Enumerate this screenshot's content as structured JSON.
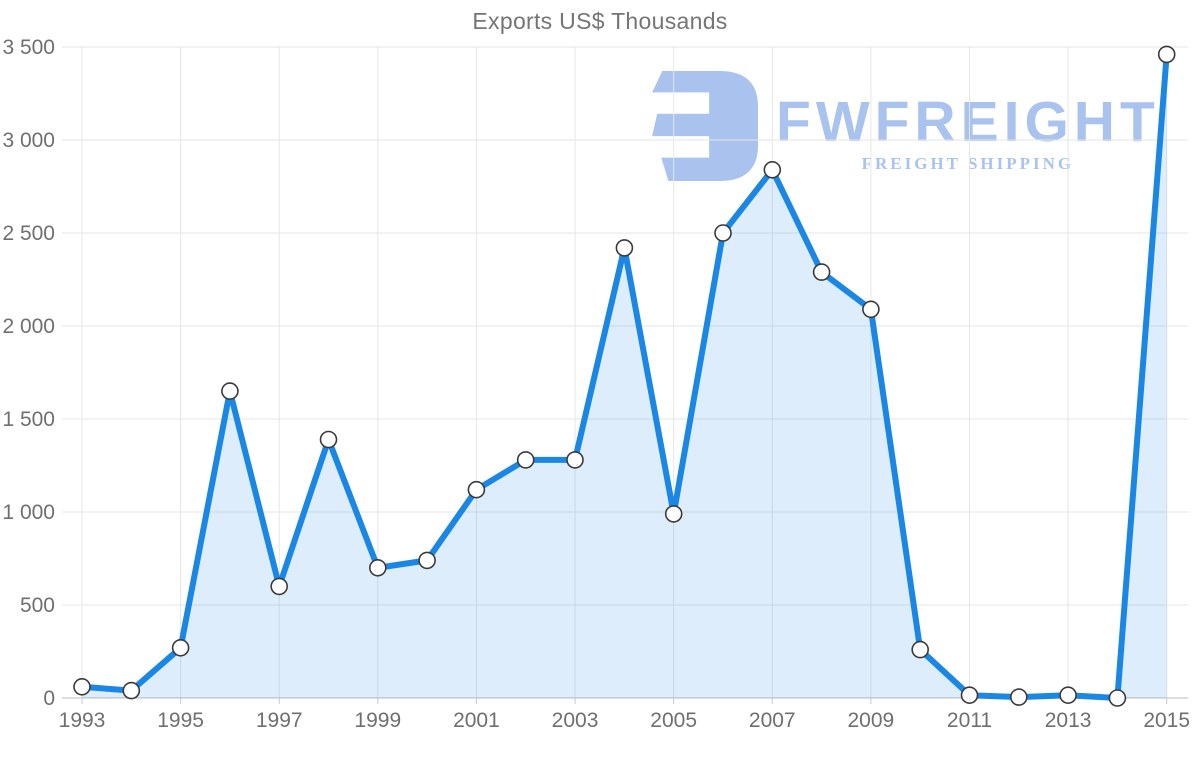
{
  "watermark": {
    "brand": "FWFREIGHT",
    "tagline": "FREIGHT SHIPPING",
    "color": "#a9c3ee",
    "logo_icon": "fwfreight-logo"
  },
  "chart_data": {
    "type": "area",
    "title": "Exports US$ Thousands",
    "x": [
      1993,
      1994,
      1995,
      1996,
      1997,
      1998,
      1999,
      2000,
      2001,
      2002,
      2003,
      2004,
      2005,
      2006,
      2007,
      2008,
      2009,
      2010,
      2011,
      2012,
      2013,
      2014,
      2015
    ],
    "values": [
      60,
      40,
      270,
      1650,
      600,
      1390,
      700,
      740,
      1120,
      1280,
      1280,
      2420,
      990,
      2500,
      2840,
      2290,
      2090,
      260,
      15,
      5,
      15,
      0,
      3460
    ],
    "series_name": "Exports US$ Thousands",
    "xlabel": "",
    "ylabel": "",
    "ylim": [
      0,
      3500
    ],
    "x_tick_labels": [
      "1993",
      "1995",
      "1997",
      "1999",
      "2001",
      "2003",
      "2005",
      "2007",
      "2009",
      "2011",
      "2013",
      "2015"
    ],
    "y_ticks": [
      0,
      500,
      1000,
      1500,
      2000,
      2500,
      3000,
      3500
    ],
    "y_tick_labels": [
      "0",
      "500",
      "1 000",
      "1 500",
      "2 000",
      "2 500",
      "3 000",
      "3 500"
    ],
    "grid": "on",
    "legend": "none",
    "line_color": "#1b87e5",
    "area_fill": "rgba(27,135,229,0.15)",
    "marker_fill": "#ffffff",
    "marker_stroke": "#3a3a3a",
    "grid_color": "#e6e6e6",
    "axis_color": "#c9c9c9",
    "tick_label_color": "#6f6f6f",
    "title_color": "#757575"
  }
}
